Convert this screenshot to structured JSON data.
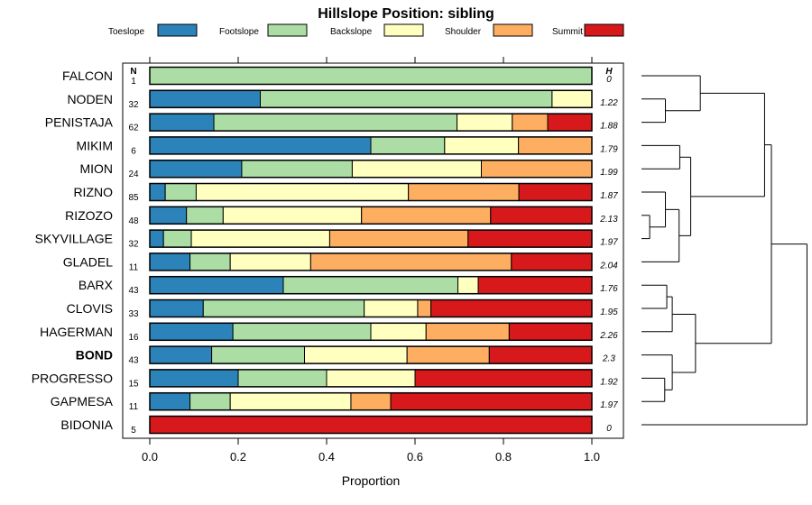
{
  "chart_data": {
    "type": "bar",
    "stacked": true,
    "orientation": "horizontal",
    "title": "Hillslope Position: sibling",
    "xlabel": "Proportion",
    "xlim": [
      0,
      1
    ],
    "x_ticks": [
      "0.0",
      "0.2",
      "0.4",
      "0.6",
      "0.8",
      "1.0"
    ],
    "x_tick_values": [
      0,
      0.2,
      0.4,
      0.6,
      0.8,
      1.0
    ],
    "n_header": "N",
    "h_header": "H",
    "highlight": "BOND",
    "legend": [
      {
        "label": "Toeslope",
        "color": "#2b83ba"
      },
      {
        "label": "Footslope",
        "color": "#abdda4"
      },
      {
        "label": "Backslope",
        "color": "#ffffbf"
      },
      {
        "label": "Shoulder",
        "color": "#fdae61"
      },
      {
        "label": "Summit",
        "color": "#d7191c"
      }
    ],
    "rows": [
      {
        "name": "FALCON",
        "n": "1",
        "h": "0",
        "values": [
          0,
          1.0,
          0,
          0,
          0
        ]
      },
      {
        "name": "NODEN",
        "n": "32",
        "h": "1.22",
        "values": [
          0.25,
          0.66,
          0.09,
          0,
          0
        ]
      },
      {
        "name": "PENISTAJA",
        "n": "62",
        "h": "1.88",
        "values": [
          0.145,
          0.55,
          0.125,
          0.08,
          0.1
        ]
      },
      {
        "name": "MIKIM",
        "n": "6",
        "h": "1.79",
        "values": [
          0.5,
          0.167,
          0.167,
          0.166,
          0
        ]
      },
      {
        "name": "MION",
        "n": "24",
        "h": "1.99",
        "values": [
          0.208,
          0.25,
          0.292,
          0.25,
          0
        ]
      },
      {
        "name": "RIZNO",
        "n": "85",
        "h": "1.87",
        "values": [
          0.035,
          0.07,
          0.48,
          0.25,
          0.165
        ]
      },
      {
        "name": "RIZOZO",
        "n": "48",
        "h": "2.13",
        "values": [
          0.083,
          0.083,
          0.313,
          0.292,
          0.229
        ]
      },
      {
        "name": "SKYVILLAGE",
        "n": "32",
        "h": "1.97",
        "values": [
          0.031,
          0.063,
          0.313,
          0.313,
          0.28
        ]
      },
      {
        "name": "GLADEL",
        "n": "11",
        "h": "2.04",
        "values": [
          0.091,
          0.091,
          0.182,
          0.454,
          0.182
        ]
      },
      {
        "name": "BARX",
        "n": "43",
        "h": "1.76",
        "values": [
          0.302,
          0.395,
          0.046,
          0,
          0.257
        ]
      },
      {
        "name": "CLOVIS",
        "n": "33",
        "h": "1.95",
        "values": [
          0.121,
          0.364,
          0.121,
          0.03,
          0.364
        ]
      },
      {
        "name": "HAGERMAN",
        "n": "16",
        "h": "2.26",
        "values": [
          0.188,
          0.312,
          0.125,
          0.188,
          0.187
        ]
      },
      {
        "name": "BOND",
        "n": "43",
        "h": "2.3",
        "values": [
          0.14,
          0.21,
          0.232,
          0.186,
          0.232
        ]
      },
      {
        "name": "PROGRESSO",
        "n": "15",
        "h": "1.92",
        "values": [
          0.2,
          0.2,
          0.2,
          0,
          0.4
        ]
      },
      {
        "name": "GAPMESA",
        "n": "11",
        "h": "1.97",
        "values": [
          0.091,
          0.091,
          0.273,
          0.09,
          0.455
        ]
      },
      {
        "name": "BIDONIA",
        "n": "5",
        "h": "0",
        "values": [
          0,
          0,
          0,
          0,
          1.0
        ]
      }
    ],
    "dendrogram": {
      "leaf_order": [
        "FALCON",
        "NODEN",
        "PENISTAJA",
        "MIKIM",
        "MION",
        "RIZNO",
        "RIZOZO",
        "SKYVILLAGE",
        "GLADEL",
        "BARX",
        "CLOVIS",
        "HAGERMAN",
        "BOND",
        "PROGRESSO",
        "GAPMESA",
        "BIDONIA"
      ],
      "merges": [
        {
          "a": "NODEN",
          "b": "PENISTAJA",
          "height": 0.35
        },
        {
          "a": "FALCON",
          "b": "NODEN+PENISTAJA",
          "height": 0.86
        },
        {
          "a": "MIKIM",
          "b": "MION",
          "height": 0.56
        },
        {
          "a": "RIZOZO",
          "b": "SKYVILLAGE",
          "height": 0.12
        },
        {
          "a": "RIZNO",
          "b": "RIZOZO+SKYVILLAGE",
          "height": 0.35
        },
        {
          "a": "RIZNO..SKYVILLAGE",
          "b": "GLADEL",
          "height": 0.55
        },
        {
          "a": "MIKIM+MION",
          "b": "RIZNO..GLADEL",
          "height": 0.72
        },
        {
          "a": "FALCON..PENISTAJA",
          "b": "MIKIM..GLADEL",
          "height": 1.8
        },
        {
          "a": "BARX",
          "b": "CLOVIS",
          "height": 0.37
        },
        {
          "a": "BARX+CLOVIS",
          "b": "HAGERMAN",
          "height": 0.45
        },
        {
          "a": "PROGRESSO",
          "b": "GAPMESA",
          "height": 0.34
        },
        {
          "a": "BOND",
          "b": "PROGRESSO+GAPMESA",
          "height": 0.45
        },
        {
          "a": "BARX..HAGERMAN",
          "b": "BOND..GAPMESA",
          "height": 0.79
        },
        {
          "a": "FALCON..GLADEL",
          "b": "BARX..GAPMESA",
          "height": 1.9
        },
        {
          "a": "FALCON..GAPMESA",
          "b": "BIDONIA",
          "height": 2.42
        }
      ]
    }
  }
}
